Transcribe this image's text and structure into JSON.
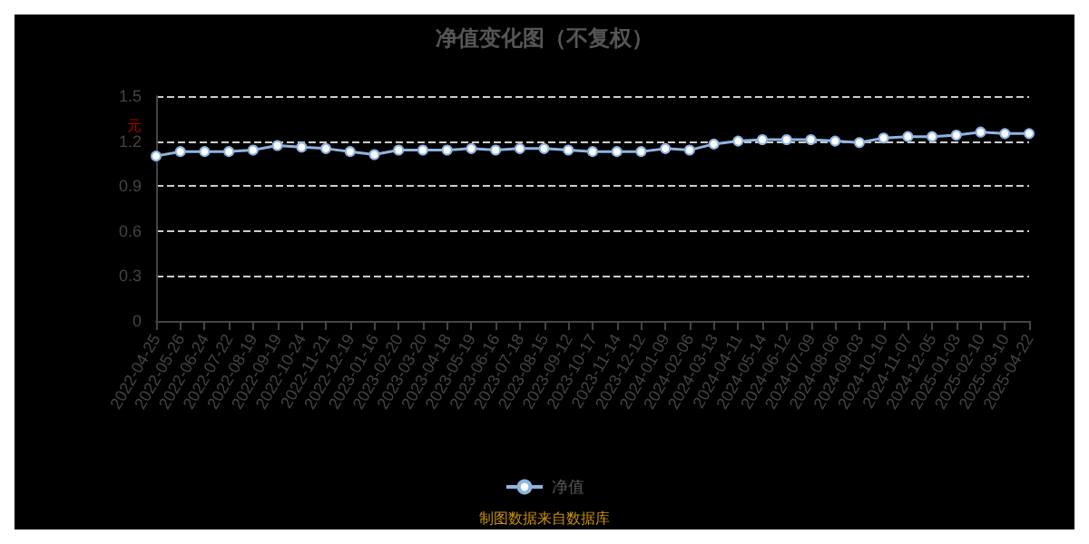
{
  "chart_data": {
    "type": "line",
    "title": "净值变化图（不复权）",
    "ylabel": "元",
    "categories": [
      "2022-04-25",
      "2022-05-26",
      "2022-06-24",
      "2022-07-22",
      "2022-08-19",
      "2022-09-19",
      "2022-10-24",
      "2022-11-21",
      "2022-12-19",
      "2023-01-16",
      "2023-02-20",
      "2023-03-20",
      "2023-04-18",
      "2023-05-19",
      "2023-06-16",
      "2023-07-18",
      "2023-08-15",
      "2023-09-12",
      "2023-10-17",
      "2023-11-14",
      "2023-12-12",
      "2024-01-09",
      "2024-02-06",
      "2024-03-13",
      "2024-04-11",
      "2024-05-14",
      "2024-06-12",
      "2024-07-09",
      "2024-08-06",
      "2024-09-03",
      "2024-10-10",
      "2024-11-07",
      "2024-12-05",
      "2025-01-03",
      "2025-02-10",
      "2025-03-10",
      "2025-04-22"
    ],
    "series": [
      {
        "name": "净值",
        "color": "#8fb4e0",
        "values": [
          1.1,
          1.13,
          1.13,
          1.13,
          1.14,
          1.17,
          1.16,
          1.15,
          1.13,
          1.11,
          1.14,
          1.14,
          1.14,
          1.15,
          1.14,
          1.15,
          1.15,
          1.14,
          1.13,
          1.13,
          1.13,
          1.15,
          1.14,
          1.18,
          1.2,
          1.21,
          1.21,
          1.21,
          1.2,
          1.19,
          1.22,
          1.23,
          1.23,
          1.24,
          1.26,
          1.25,
          1.25
        ]
      }
    ],
    "ylim": [
      0,
      1.5
    ],
    "yticks": [
      0,
      0.3,
      0.6,
      0.9,
      1.2,
      1.5
    ],
    "grid": "y",
    "legend": "bottom",
    "marker": "circle",
    "line_style": "solid",
    "annotations": [
      "制图数据来自数据库"
    ]
  }
}
